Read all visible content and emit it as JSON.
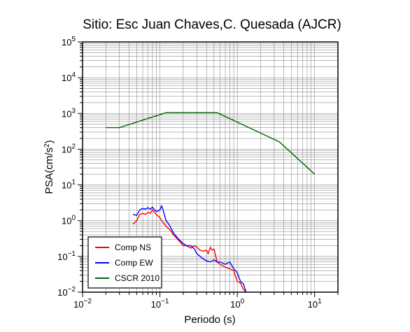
{
  "chart_data": {
    "type": "line",
    "title": "Sitio: Esc Juan Chaves,C. Quesada (AJCR)",
    "xlabel": "Periodo (s)",
    "ylabel_main": "PSA(cm/s",
    "ylabel_sup": "2",
    "ylabel_end": ")",
    "xscale": "log",
    "yscale": "log",
    "xlim": [
      0.01,
      20
    ],
    "ylim": [
      0.01,
      100000
    ],
    "grid": true,
    "legend_position": "bottom-left",
    "x_ticks": [
      {
        "base": "10",
        "exp": "−2",
        "value": 0.01
      },
      {
        "base": "10",
        "exp": "−1",
        "value": 0.1
      },
      {
        "base": "10",
        "exp": "0",
        "value": 1
      },
      {
        "base": "10",
        "exp": "1",
        "value": 10
      }
    ],
    "y_ticks": [
      {
        "base": "10",
        "exp": "−2",
        "value": 0.01
      },
      {
        "base": "10",
        "exp": "−1",
        "value": 0.1
      },
      {
        "base": "10",
        "exp": "0",
        "value": 1
      },
      {
        "base": "10",
        "exp": "1",
        "value": 10
      },
      {
        "base": "10",
        "exp": "2",
        "value": 100
      },
      {
        "base": "10",
        "exp": "3",
        "value": 1000
      },
      {
        "base": "10",
        "exp": "4",
        "value": 10000
      },
      {
        "base": "10",
        "exp": "5",
        "value": 100000
      }
    ],
    "series": [
      {
        "name": "Comp NS",
        "color": "#ff0000",
        "x": [
          0.045,
          0.05,
          0.055,
          0.06,
          0.065,
          0.07,
          0.075,
          0.08,
          0.085,
          0.09,
          0.1,
          0.11,
          0.12,
          0.13,
          0.14,
          0.15,
          0.17,
          0.2,
          0.22,
          0.25,
          0.28,
          0.3,
          0.33,
          0.36,
          0.4,
          0.42,
          0.45,
          0.47,
          0.5,
          0.55,
          0.6,
          0.7,
          0.8,
          0.9,
          1.0,
          1.1,
          1.2,
          1.3
        ],
        "y": [
          0.8,
          1.0,
          1.5,
          1.6,
          1.5,
          1.7,
          1.6,
          2.0,
          1.7,
          1.5,
          1.2,
          0.9,
          0.7,
          0.6,
          0.5,
          0.4,
          0.3,
          0.2,
          0.2,
          0.17,
          0.2,
          0.18,
          0.15,
          0.14,
          0.15,
          0.12,
          0.18,
          0.15,
          0.16,
          0.07,
          0.06,
          0.05,
          0.045,
          0.04,
          0.02,
          0.018,
          0.012,
          0.01
        ]
      },
      {
        "name": "Comp EW",
        "color": "#0000ff",
        "x": [
          0.045,
          0.05,
          0.055,
          0.06,
          0.065,
          0.07,
          0.075,
          0.08,
          0.085,
          0.09,
          0.1,
          0.105,
          0.11,
          0.12,
          0.13,
          0.14,
          0.15,
          0.17,
          0.2,
          0.22,
          0.25,
          0.28,
          0.3,
          0.35,
          0.4,
          0.45,
          0.5,
          0.55,
          0.6,
          0.7,
          0.8,
          0.9,
          1.0,
          1.1,
          1.2,
          1.3
        ],
        "y": [
          1.5,
          1.4,
          2.0,
          2.2,
          2.1,
          2.3,
          2.1,
          2.4,
          2.0,
          1.8,
          2.0,
          2.6,
          2.0,
          1.0,
          0.8,
          0.6,
          0.45,
          0.32,
          0.23,
          0.2,
          0.2,
          0.16,
          0.12,
          0.09,
          0.075,
          0.07,
          0.08,
          0.07,
          0.07,
          0.06,
          0.07,
          0.045,
          0.035,
          0.02,
          0.017,
          0.01
        ]
      },
      {
        "name": "CSCR 2010",
        "color": "#006400",
        "x": [
          0.02,
          0.03,
          0.12,
          0.55,
          3.5,
          10
        ],
        "y": [
          400,
          400,
          1050,
          1050,
          160,
          20
        ]
      }
    ]
  }
}
